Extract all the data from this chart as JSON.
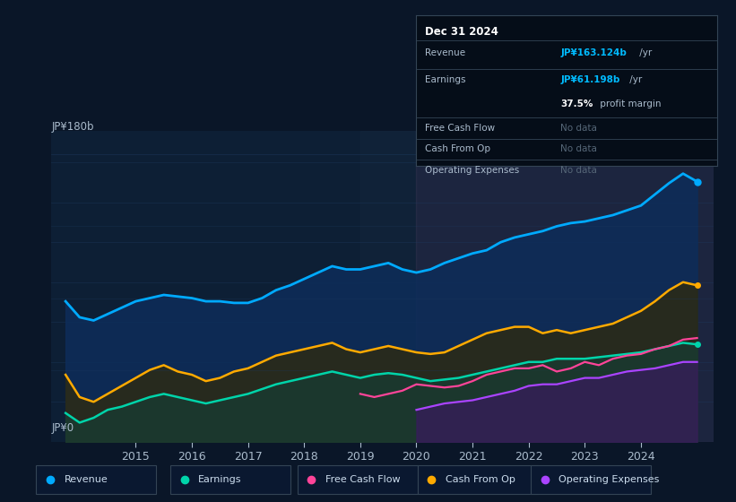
{
  "background_color": "#0a1628",
  "plot_bg_color": "#0d1f35",
  "grid_color": "#1e3a5f",
  "title_label": "JP¥180b",
  "y_bottom_label": "JP¥0",
  "x_ticks": [
    2015,
    2016,
    2017,
    2018,
    2019,
    2020,
    2021,
    2022,
    2023,
    2024
  ],
  "x_min": 2013.5,
  "x_max": 2025.3,
  "y_min": 0,
  "y_max": 195,
  "revenue": {
    "label": "Revenue",
    "color": "#00aaff",
    "fill_color": "#1a3a6a",
    "x": [
      2013.75,
      2014.0,
      2014.25,
      2014.5,
      2014.75,
      2015.0,
      2015.25,
      2015.5,
      2015.75,
      2016.0,
      2016.25,
      2016.5,
      2016.75,
      2017.0,
      2017.25,
      2017.5,
      2017.75,
      2018.0,
      2018.25,
      2018.5,
      2018.75,
      2019.0,
      2019.25,
      2019.5,
      2019.75,
      2020.0,
      2020.25,
      2020.5,
      2020.75,
      2021.0,
      2021.25,
      2021.5,
      2021.75,
      2022.0,
      2022.25,
      2022.5,
      2022.75,
      2023.0,
      2023.25,
      2023.5,
      2023.75,
      2024.0,
      2024.25,
      2024.5,
      2024.75,
      2025.0
    ],
    "y": [
      88,
      78,
      76,
      80,
      84,
      88,
      90,
      92,
      91,
      90,
      88,
      88,
      87,
      87,
      90,
      95,
      98,
      102,
      106,
      110,
      108,
      108,
      110,
      112,
      108,
      106,
      108,
      112,
      115,
      118,
      120,
      125,
      128,
      130,
      132,
      135,
      137,
      138,
      140,
      142,
      145,
      148,
      155,
      162,
      168,
      163
    ]
  },
  "earnings": {
    "label": "Earnings",
    "color": "#00d4aa",
    "fill_color": "#1a4a40",
    "x": [
      2013.75,
      2014.0,
      2014.25,
      2014.5,
      2014.75,
      2015.0,
      2015.25,
      2015.5,
      2015.75,
      2016.0,
      2016.25,
      2016.5,
      2016.75,
      2017.0,
      2017.25,
      2017.5,
      2017.75,
      2018.0,
      2018.25,
      2018.5,
      2018.75,
      2019.0,
      2019.25,
      2019.5,
      2019.75,
      2020.0,
      2020.25,
      2020.5,
      2020.75,
      2021.0,
      2021.25,
      2021.5,
      2021.75,
      2022.0,
      2022.25,
      2022.5,
      2022.75,
      2023.0,
      2023.25,
      2023.5,
      2023.75,
      2024.0,
      2024.25,
      2024.5,
      2024.75,
      2025.0
    ],
    "y": [
      18,
      12,
      15,
      20,
      22,
      25,
      28,
      30,
      28,
      26,
      24,
      26,
      28,
      30,
      33,
      36,
      38,
      40,
      42,
      44,
      42,
      40,
      42,
      43,
      42,
      40,
      38,
      39,
      40,
      42,
      44,
      46,
      48,
      50,
      50,
      52,
      52,
      52,
      53,
      54,
      55,
      56,
      58,
      60,
      62,
      61
    ]
  },
  "free_cash_flow": {
    "label": "Free Cash Flow",
    "color": "#ff4499",
    "fill_color": "#3a1a35",
    "x": [
      2019.0,
      2019.25,
      2019.5,
      2019.75,
      2020.0,
      2020.25,
      2020.5,
      2020.75,
      2021.0,
      2021.25,
      2021.5,
      2021.75,
      2022.0,
      2022.25,
      2022.5,
      2022.75,
      2023.0,
      2023.25,
      2023.5,
      2023.75,
      2024.0,
      2024.25,
      2024.5,
      2024.75,
      2025.0
    ],
    "y": [
      30,
      28,
      30,
      32,
      36,
      35,
      34,
      35,
      38,
      42,
      44,
      46,
      46,
      48,
      44,
      46,
      50,
      48,
      52,
      54,
      55,
      58,
      60,
      64,
      65
    ]
  },
  "cash_from_op": {
    "label": "Cash From Op",
    "color": "#ffaa00",
    "fill_color": "#2a2a10",
    "x": [
      2013.75,
      2014.0,
      2014.25,
      2014.5,
      2014.75,
      2015.0,
      2015.25,
      2015.5,
      2015.75,
      2016.0,
      2016.25,
      2016.5,
      2016.75,
      2017.0,
      2017.25,
      2017.5,
      2017.75,
      2018.0,
      2018.25,
      2018.5,
      2018.75,
      2019.0,
      2019.25,
      2019.5,
      2019.75,
      2020.0,
      2020.25,
      2020.5,
      2020.75,
      2021.0,
      2021.25,
      2021.5,
      2021.75,
      2022.0,
      2022.25,
      2022.5,
      2022.75,
      2023.0,
      2023.25,
      2023.5,
      2023.75,
      2024.0,
      2024.25,
      2024.5,
      2024.75,
      2025.0
    ],
    "y": [
      42,
      28,
      25,
      30,
      35,
      40,
      45,
      48,
      44,
      42,
      38,
      40,
      44,
      46,
      50,
      54,
      56,
      58,
      60,
      62,
      58,
      56,
      58,
      60,
      58,
      56,
      55,
      56,
      60,
      64,
      68,
      70,
      72,
      72,
      68,
      70,
      68,
      70,
      72,
      74,
      78,
      82,
      88,
      95,
      100,
      98
    ]
  },
  "operating_expenses": {
    "label": "Operating Expenses",
    "color": "#aa44ff",
    "fill_color": "#2a1a4a",
    "x": [
      2020.0,
      2020.25,
      2020.5,
      2020.75,
      2021.0,
      2021.25,
      2021.5,
      2021.75,
      2022.0,
      2022.25,
      2022.5,
      2022.75,
      2023.0,
      2023.25,
      2023.5,
      2023.75,
      2024.0,
      2024.25,
      2024.5,
      2024.75,
      2025.0
    ],
    "y": [
      20,
      22,
      24,
      25,
      26,
      28,
      30,
      32,
      35,
      36,
      36,
      38,
      40,
      40,
      42,
      44,
      45,
      46,
      48,
      50,
      50
    ]
  },
  "info_box": {
    "date": "Dec 31 2024",
    "revenue_label": "Revenue",
    "revenue_value": "JP¥163.124b",
    "revenue_unit": " /yr",
    "earnings_label": "Earnings",
    "earnings_value": "JP¥61.198b",
    "earnings_unit": " /yr",
    "margin_text": "37.5%",
    "margin_label": " profit margin",
    "fcf_label": "Free Cash Flow",
    "fcf_value": "No data",
    "cfo_label": "Cash From Op",
    "cfo_value": "No data",
    "opex_label": "Operating Expenses",
    "opex_value": "No data"
  },
  "legend_items": [
    {
      "label": "Revenue",
      "color": "#00aaff"
    },
    {
      "label": "Earnings",
      "color": "#00d4aa"
    },
    {
      "label": "Free Cash Flow",
      "color": "#ff4499"
    },
    {
      "label": "Cash From Op",
      "color": "#ffaa00"
    },
    {
      "label": "Operating Expenses",
      "color": "#aa44ff"
    }
  ],
  "shaded_region_2019_color": "#2a3a50",
  "shaded_region_2020_color": "#3a2a50"
}
